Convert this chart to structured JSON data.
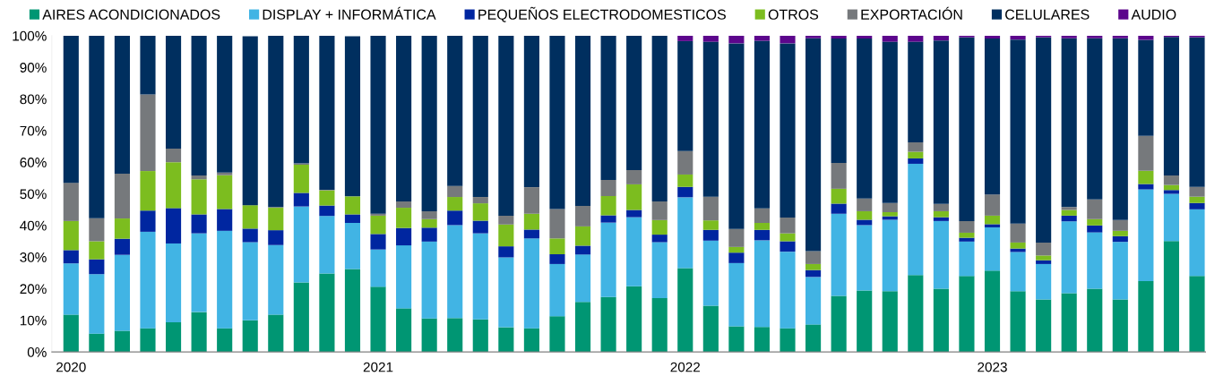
{
  "chart_data": {
    "type": "bar",
    "stacked": true,
    "categories": [
      "2020",
      null,
      null,
      null,
      null,
      null,
      null,
      null,
      null,
      null,
      null,
      null,
      "2021",
      null,
      null,
      null,
      null,
      null,
      null,
      null,
      null,
      null,
      null,
      null,
      "2022",
      null,
      null,
      null,
      null,
      null,
      null,
      null,
      null,
      null,
      null,
      null,
      "2023",
      null,
      null,
      null,
      null,
      null,
      null,
      null,
      null
    ],
    "series": [
      {
        "name": "AIRES ACONDICIONADOS",
        "color": "#009673",
        "values": [
          11.8,
          5.8,
          6.7,
          7.5,
          9.4,
          12.6,
          7.5,
          10.0,
          11.8,
          22.0,
          24.8,
          26.2,
          20.6,
          13.8,
          10.6,
          10.7,
          10.3,
          7.8,
          7.5,
          11.3,
          15.8,
          17.4,
          20.8,
          17.0,
          26.5,
          14.6,
          8.1,
          7.9,
          7.5,
          8.7,
          17.7,
          19.4,
          19.2,
          24.3,
          20.0,
          24.0,
          25.7,
          19.2,
          16.6,
          18.6,
          20.0,
          16.6,
          22.4,
          35.1,
          24.0
        ]
      },
      {
        "name": "DISPLAY + INFORMÁTICA",
        "color": "#41b4e4",
        "values": [
          16.2,
          18.8,
          24.0,
          30.5,
          24.9,
          24.9,
          30.8,
          24.7,
          22.0,
          24.0,
          18.2,
          14.6,
          11.8,
          19.9,
          24.3,
          29.4,
          27.2,
          22.1,
          28.4,
          16.5,
          15.0,
          23.5,
          21.8,
          17.7,
          22.4,
          20.6,
          20.0,
          27.4,
          24.2,
          15.0,
          26.0,
          20.7,
          22.6,
          35.2,
          21.4,
          10.9,
          13.7,
          12.4,
          11.2,
          22.7,
          17.8,
          18.2,
          29.0,
          14.9,
          21.1
        ]
      },
      {
        "name": "PEQUEÑOS ELECTRODOMESTICOS",
        "color": "#0026a0",
        "values": [
          4.2,
          4.7,
          5.1,
          6.7,
          11.2,
          6.0,
          6.9,
          4.3,
          4.7,
          4.3,
          3.3,
          2.7,
          4.9,
          5.5,
          4.4,
          4.6,
          4.0,
          3.5,
          2.8,
          3.1,
          2.8,
          2.3,
          2.3,
          2.4,
          3.3,
          3.4,
          3.3,
          3.3,
          3.3,
          2.2,
          3.2,
          1.7,
          1.1,
          1.7,
          1.2,
          1.2,
          1.0,
          1.1,
          1.2,
          1.8,
          2.2,
          1.8,
          1.7,
          1.2,
          2.0
        ]
      },
      {
        "name": "OTROS",
        "color": "#7cbd1f",
        "values": [
          9.2,
          5.7,
          6.4,
          12.5,
          14.5,
          11.1,
          10.7,
          7.4,
          7.1,
          8.9,
          4.8,
          5.7,
          5.8,
          6.4,
          2.7,
          4.3,
          5.5,
          6.9,
          5.0,
          5.0,
          6.1,
          6.1,
          8.1,
          4.6,
          3.9,
          3.0,
          1.8,
          2.2,
          2.5,
          1.9,
          4.7,
          2.7,
          1.3,
          2.1,
          1.9,
          1.6,
          2.7,
          1.9,
          1.5,
          1.8,
          2.0,
          1.7,
          4.2,
          1.6,
          2.0
        ]
      },
      {
        "name": "EXPORTACIÓN",
        "color": "#76797c",
        "values": [
          12.1,
          7.3,
          14.2,
          24.2,
          4.3,
          1.2,
          0.8,
          null,
          0.2,
          0.4,
          0.2,
          null,
          0.6,
          2.0,
          2.5,
          3.5,
          2.0,
          2.8,
          8.4,
          9.3,
          6.5,
          5.1,
          4.5,
          5.9,
          7.4,
          7.5,
          5.7,
          4.6,
          5.0,
          4.1,
          8.2,
          4.0,
          2.9,
          3.0,
          2.3,
          3.7,
          6.7,
          6.0,
          4.1,
          0.9,
          6.2,
          3.4,
          11.0,
          3.0,
          3.1
        ]
      },
      {
        "name": "CELULARES",
        "color": "#002f5f",
        "values": [
          46.5,
          57.7,
          43.6,
          18.6,
          35.7,
          44.2,
          43.3,
          53.4,
          54.2,
          40.4,
          48.7,
          50.6,
          56.3,
          52.4,
          55.5,
          47.5,
          51.0,
          56.9,
          47.9,
          54.8,
          53.8,
          45.6,
          42.5,
          52.4,
          34.8,
          49.0,
          58.7,
          53.0,
          55.1,
          67.3,
          39.3,
          50.6,
          51.0,
          31.8,
          51.7,
          58.1,
          49.3,
          58.2,
          64.9,
          53.4,
          51.0,
          57.5,
          30.4,
          43.8,
          47.3
        ]
      },
      {
        "name": "AUDIO",
        "color": "#5c068c",
        "values": [
          0,
          0,
          0,
          0,
          0,
          0,
          0,
          0,
          0,
          0,
          0,
          0,
          0,
          0,
          0,
          0,
          0,
          0,
          0,
          0,
          0,
          0,
          0,
          0,
          1.7,
          1.9,
          2.4,
          1.6,
          2.4,
          0.8,
          0.9,
          0.9,
          1.9,
          1.9,
          1.5,
          0.5,
          0.9,
          1.2,
          0.5,
          0.8,
          0.8,
          0.8,
          1.3,
          0.4,
          0.5
        ]
      }
    ],
    "ylim": [
      0,
      100
    ],
    "yticks": [
      {
        "value": 0,
        "label": "0%"
      },
      {
        "value": 10,
        "label": "10%"
      },
      {
        "value": 20,
        "label": "20%"
      },
      {
        "value": 30,
        "label": "30%"
      },
      {
        "value": 40,
        "label": "40%"
      },
      {
        "value": 50,
        "label": "50%"
      },
      {
        "value": 60,
        "label": "60%"
      },
      {
        "value": 70,
        "label": "70%"
      },
      {
        "value": 80,
        "label": "80%"
      },
      {
        "value": 90,
        "label": "90%"
      },
      {
        "value": 100,
        "label": "100%"
      }
    ],
    "grid": false,
    "legend": "top"
  }
}
